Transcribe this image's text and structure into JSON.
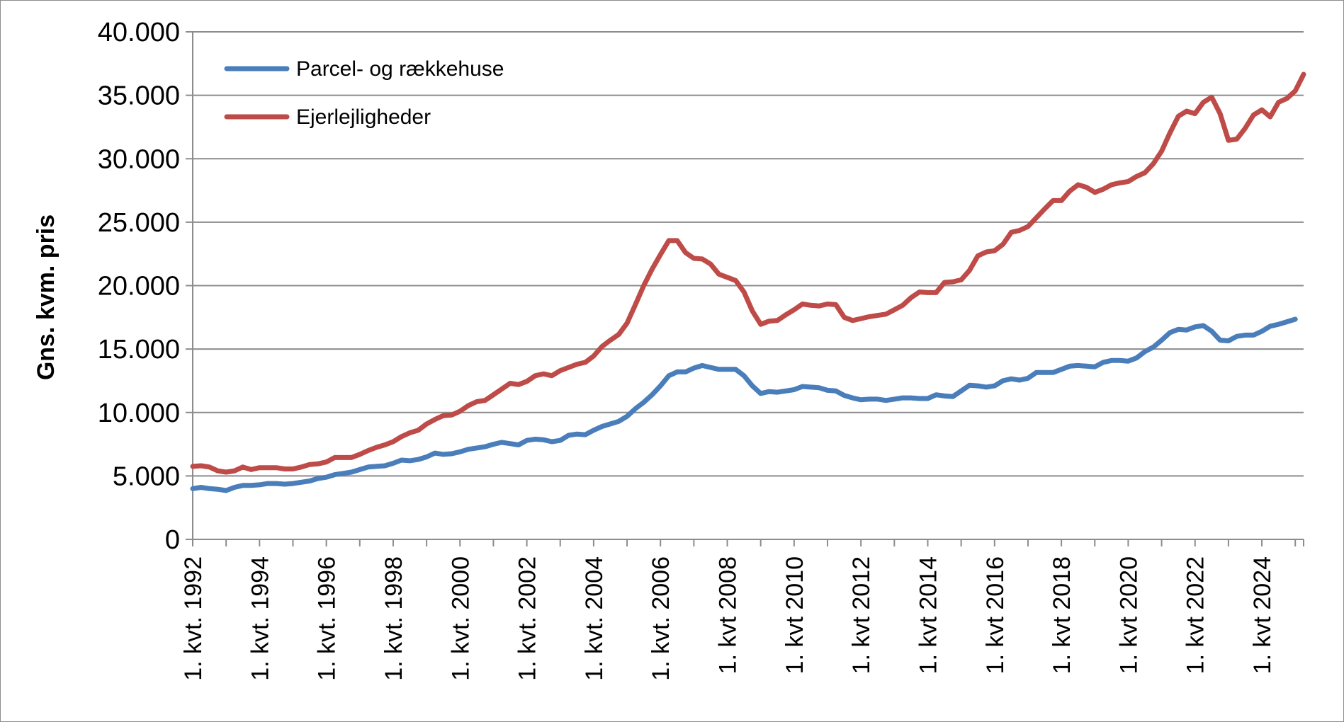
{
  "chart_data": {
    "type": "line",
    "title": "",
    "xlabel": "",
    "ylabel": "Gns. kvm. pris",
    "ylim": [
      0,
      40000
    ],
    "y_ticks": [
      {
        "value": 0,
        "label": "0"
      },
      {
        "value": 5000,
        "label": "5.000"
      },
      {
        "value": 10000,
        "label": "10.000"
      },
      {
        "value": 15000,
        "label": "15.000"
      },
      {
        "value": 20000,
        "label": "20.000"
      },
      {
        "value": 25000,
        "label": "25.000"
      },
      {
        "value": 30000,
        "label": "30.000"
      },
      {
        "value": 35000,
        "label": "35.000"
      },
      {
        "value": 40000,
        "label": "40.000"
      }
    ],
    "x_range": [
      1992,
      2025.25
    ],
    "x_ticks": [
      {
        "value": 1992,
        "label": "1. kvt. 1992"
      },
      {
        "value": 1994,
        "label": "1. kvt. 1994"
      },
      {
        "value": 1996,
        "label": "1. kvt. 1996"
      },
      {
        "value": 1998,
        "label": "1. kvt. 1998"
      },
      {
        "value": 2000,
        "label": "1. kvt. 2000"
      },
      {
        "value": 2002,
        "label": "1. kvt. 2002"
      },
      {
        "value": 2004,
        "label": "1. kvt. 2004"
      },
      {
        "value": 2006,
        "label": "1. kvt. 2006"
      },
      {
        "value": 2008,
        "label": "1. kvt 2008"
      },
      {
        "value": 2010,
        "label": "1. kvt 2010"
      },
      {
        "value": 2012,
        "label": "1. kvt 2012"
      },
      {
        "value": 2014,
        "label": "1. kvt 2014"
      },
      {
        "value": 2016,
        "label": "1. kvt 2016"
      },
      {
        "value": 2018,
        "label": "1. kvt 2018"
      },
      {
        "value": 2020,
        "label": "1. kvt 2020"
      },
      {
        "value": 2022,
        "label": "1. kvt 2022"
      },
      {
        "value": 2024,
        "label": "1. kvt 2024"
      }
    ],
    "grid": true,
    "legend_position": "top-left",
    "series": [
      {
        "name": "Parcel- og rækkehuse",
        "color": "#4a7ebb",
        "points": [
          [
            1992.0,
            4000
          ],
          [
            1992.25,
            4100
          ],
          [
            1992.5,
            4000
          ],
          [
            1992.75,
            3950
          ],
          [
            1993.0,
            3850
          ],
          [
            1993.25,
            4100
          ],
          [
            1993.5,
            4250
          ],
          [
            1993.75,
            4250
          ],
          [
            1994.0,
            4300
          ],
          [
            1994.25,
            4400
          ],
          [
            1994.5,
            4400
          ],
          [
            1994.75,
            4350
          ],
          [
            1995.0,
            4400
          ],
          [
            1995.25,
            4500
          ],
          [
            1995.5,
            4600
          ],
          [
            1995.75,
            4800
          ],
          [
            1996.0,
            4900
          ],
          [
            1996.25,
            5100
          ],
          [
            1996.5,
            5200
          ],
          [
            1996.75,
            5300
          ],
          [
            1997.0,
            5500
          ],
          [
            1997.25,
            5700
          ],
          [
            1997.5,
            5750
          ],
          [
            1997.75,
            5800
          ],
          [
            1998.0,
            6000
          ],
          [
            1998.25,
            6250
          ],
          [
            1998.5,
            6200
          ],
          [
            1998.75,
            6300
          ],
          [
            1999.0,
            6500
          ],
          [
            1999.25,
            6800
          ],
          [
            1999.5,
            6700
          ],
          [
            1999.75,
            6750
          ],
          [
            2000.0,
            6900
          ],
          [
            2000.25,
            7100
          ],
          [
            2000.5,
            7200
          ],
          [
            2000.75,
            7300
          ],
          [
            2001.0,
            7500
          ],
          [
            2001.25,
            7650
          ],
          [
            2001.5,
            7550
          ],
          [
            2001.75,
            7450
          ],
          [
            2002.0,
            7800
          ],
          [
            2002.25,
            7900
          ],
          [
            2002.5,
            7850
          ],
          [
            2002.75,
            7700
          ],
          [
            2003.0,
            7800
          ],
          [
            2003.25,
            8200
          ],
          [
            2003.5,
            8300
          ],
          [
            2003.75,
            8250
          ],
          [
            2004.0,
            8600
          ],
          [
            2004.25,
            8900
          ],
          [
            2004.5,
            9100
          ],
          [
            2004.75,
            9300
          ],
          [
            2005.0,
            9700
          ],
          [
            2005.25,
            10300
          ],
          [
            2005.5,
            10800
          ],
          [
            2005.75,
            11400
          ],
          [
            2006.0,
            12100
          ],
          [
            2006.25,
            12900
          ],
          [
            2006.5,
            13200
          ],
          [
            2006.75,
            13200
          ],
          [
            2007.0,
            13500
          ],
          [
            2007.25,
            13700
          ],
          [
            2007.5,
            13550
          ],
          [
            2007.75,
            13400
          ],
          [
            2008.0,
            13400
          ],
          [
            2008.25,
            13400
          ],
          [
            2008.5,
            12900
          ],
          [
            2008.75,
            12100
          ],
          [
            2009.0,
            11500
          ],
          [
            2009.25,
            11650
          ],
          [
            2009.5,
            11600
          ],
          [
            2009.75,
            11700
          ],
          [
            2010.0,
            11800
          ],
          [
            2010.25,
            12050
          ],
          [
            2010.5,
            12000
          ],
          [
            2010.75,
            11950
          ],
          [
            2011.0,
            11750
          ],
          [
            2011.25,
            11700
          ],
          [
            2011.5,
            11350
          ],
          [
            2011.75,
            11150
          ],
          [
            2012.0,
            11000
          ],
          [
            2012.25,
            11050
          ],
          [
            2012.5,
            11050
          ],
          [
            2012.75,
            10950
          ],
          [
            2013.0,
            11050
          ],
          [
            2013.25,
            11150
          ],
          [
            2013.5,
            11150
          ],
          [
            2013.75,
            11100
          ],
          [
            2014.0,
            11100
          ],
          [
            2014.25,
            11400
          ],
          [
            2014.5,
            11300
          ],
          [
            2014.75,
            11250
          ],
          [
            2015.0,
            11700
          ],
          [
            2015.25,
            12150
          ],
          [
            2015.5,
            12100
          ],
          [
            2015.75,
            12000
          ],
          [
            2016.0,
            12100
          ],
          [
            2016.25,
            12500
          ],
          [
            2016.5,
            12650
          ],
          [
            2016.75,
            12550
          ],
          [
            2017.0,
            12700
          ],
          [
            2017.25,
            13150
          ],
          [
            2017.5,
            13150
          ],
          [
            2017.75,
            13150
          ],
          [
            2018.0,
            13400
          ],
          [
            2018.25,
            13650
          ],
          [
            2018.5,
            13700
          ],
          [
            2018.75,
            13650
          ],
          [
            2019.0,
            13600
          ],
          [
            2019.25,
            13950
          ],
          [
            2019.5,
            14100
          ],
          [
            2019.75,
            14100
          ],
          [
            2020.0,
            14050
          ],
          [
            2020.25,
            14300
          ],
          [
            2020.5,
            14800
          ],
          [
            2020.75,
            15150
          ],
          [
            2021.0,
            15700
          ],
          [
            2021.25,
            16300
          ],
          [
            2021.5,
            16550
          ],
          [
            2021.75,
            16500
          ],
          [
            2022.0,
            16750
          ],
          [
            2022.25,
            16850
          ],
          [
            2022.5,
            16400
          ],
          [
            2022.75,
            15700
          ],
          [
            2023.0,
            15650
          ],
          [
            2023.25,
            16000
          ],
          [
            2023.5,
            16100
          ],
          [
            2023.75,
            16100
          ],
          [
            2024.0,
            16400
          ],
          [
            2024.25,
            16800
          ],
          [
            2024.5,
            16950
          ],
          [
            2024.75,
            17150
          ],
          [
            2025.0,
            17350
          ]
        ]
      },
      {
        "name": "Ejerlejligheder",
        "color": "#be4b48",
        "points": [
          [
            1992.0,
            5750
          ],
          [
            1992.25,
            5800
          ],
          [
            1992.5,
            5700
          ],
          [
            1992.75,
            5400
          ],
          [
            1993.0,
            5300
          ],
          [
            1993.25,
            5400
          ],
          [
            1993.5,
            5700
          ],
          [
            1993.75,
            5500
          ],
          [
            1994.0,
            5650
          ],
          [
            1994.25,
            5650
          ],
          [
            1994.5,
            5650
          ],
          [
            1994.75,
            5550
          ],
          [
            1995.0,
            5550
          ],
          [
            1995.25,
            5700
          ],
          [
            1995.5,
            5900
          ],
          [
            1995.75,
            5950
          ],
          [
            1996.0,
            6100
          ],
          [
            1996.25,
            6450
          ],
          [
            1996.5,
            6450
          ],
          [
            1996.75,
            6450
          ],
          [
            1997.0,
            6700
          ],
          [
            1997.25,
            7000
          ],
          [
            1997.5,
            7250
          ],
          [
            1997.75,
            7450
          ],
          [
            1998.0,
            7700
          ],
          [
            1998.25,
            8100
          ],
          [
            1998.5,
            8400
          ],
          [
            1998.75,
            8600
          ],
          [
            1999.0,
            9100
          ],
          [
            1999.25,
            9450
          ],
          [
            1999.5,
            9750
          ],
          [
            1999.75,
            9800
          ],
          [
            2000.0,
            10100
          ],
          [
            2000.25,
            10550
          ],
          [
            2000.5,
            10850
          ],
          [
            2000.75,
            10950
          ],
          [
            2001.0,
            11400
          ],
          [
            2001.25,
            11850
          ],
          [
            2001.5,
            12300
          ],
          [
            2001.75,
            12200
          ],
          [
            2002.0,
            12450
          ],
          [
            2002.25,
            12900
          ],
          [
            2002.5,
            13050
          ],
          [
            2002.75,
            12900
          ],
          [
            2003.0,
            13300
          ],
          [
            2003.25,
            13550
          ],
          [
            2003.5,
            13800
          ],
          [
            2003.75,
            13950
          ],
          [
            2004.0,
            14450
          ],
          [
            2004.25,
            15200
          ],
          [
            2004.5,
            15700
          ],
          [
            2004.75,
            16150
          ],
          [
            2005.0,
            17050
          ],
          [
            2005.25,
            18500
          ],
          [
            2005.5,
            20000
          ],
          [
            2005.75,
            21300
          ],
          [
            2006.0,
            22450
          ],
          [
            2006.25,
            23550
          ],
          [
            2006.5,
            23550
          ],
          [
            2006.75,
            22600
          ],
          [
            2007.0,
            22150
          ],
          [
            2007.25,
            22100
          ],
          [
            2007.5,
            21700
          ],
          [
            2007.75,
            20900
          ],
          [
            2008.0,
            20650
          ],
          [
            2008.25,
            20400
          ],
          [
            2008.5,
            19500
          ],
          [
            2008.75,
            18000
          ],
          [
            2009.0,
            16950
          ],
          [
            2009.25,
            17200
          ],
          [
            2009.5,
            17250
          ],
          [
            2009.75,
            17700
          ],
          [
            2010.0,
            18100
          ],
          [
            2010.25,
            18550
          ],
          [
            2010.5,
            18450
          ],
          [
            2010.75,
            18400
          ],
          [
            2011.0,
            18550
          ],
          [
            2011.25,
            18500
          ],
          [
            2011.5,
            17500
          ],
          [
            2011.75,
            17250
          ],
          [
            2012.0,
            17400
          ],
          [
            2012.25,
            17550
          ],
          [
            2012.5,
            17650
          ],
          [
            2012.75,
            17750
          ],
          [
            2013.0,
            18100
          ],
          [
            2013.25,
            18450
          ],
          [
            2013.5,
            19050
          ],
          [
            2013.75,
            19500
          ],
          [
            2014.0,
            19450
          ],
          [
            2014.25,
            19450
          ],
          [
            2014.5,
            20250
          ],
          [
            2014.75,
            20300
          ],
          [
            2015.0,
            20450
          ],
          [
            2015.25,
            21200
          ],
          [
            2015.5,
            22350
          ],
          [
            2015.75,
            22650
          ],
          [
            2016.0,
            22750
          ],
          [
            2016.25,
            23250
          ],
          [
            2016.5,
            24200
          ],
          [
            2016.75,
            24350
          ],
          [
            2017.0,
            24650
          ],
          [
            2017.25,
            25350
          ],
          [
            2017.5,
            26050
          ],
          [
            2017.75,
            26700
          ],
          [
            2018.0,
            26700
          ],
          [
            2018.25,
            27450
          ],
          [
            2018.5,
            27950
          ],
          [
            2018.75,
            27750
          ],
          [
            2019.0,
            27350
          ],
          [
            2019.25,
            27600
          ],
          [
            2019.5,
            27950
          ],
          [
            2019.75,
            28100
          ],
          [
            2020.0,
            28200
          ],
          [
            2020.25,
            28600
          ],
          [
            2020.5,
            28900
          ],
          [
            2020.75,
            29600
          ],
          [
            2021.0,
            30600
          ],
          [
            2021.25,
            32050
          ],
          [
            2021.5,
            33350
          ],
          [
            2021.75,
            33750
          ],
          [
            2022.0,
            33550
          ],
          [
            2022.25,
            34450
          ],
          [
            2022.5,
            34850
          ],
          [
            2022.75,
            33550
          ],
          [
            2023.0,
            31450
          ],
          [
            2023.25,
            31550
          ],
          [
            2023.5,
            32400
          ],
          [
            2023.75,
            33450
          ],
          [
            2024.0,
            33850
          ],
          [
            2024.25,
            33300
          ],
          [
            2024.5,
            34450
          ],
          [
            2024.75,
            34750
          ],
          [
            2025.0,
            35350
          ],
          [
            2025.25,
            36650
          ]
        ]
      }
    ]
  }
}
